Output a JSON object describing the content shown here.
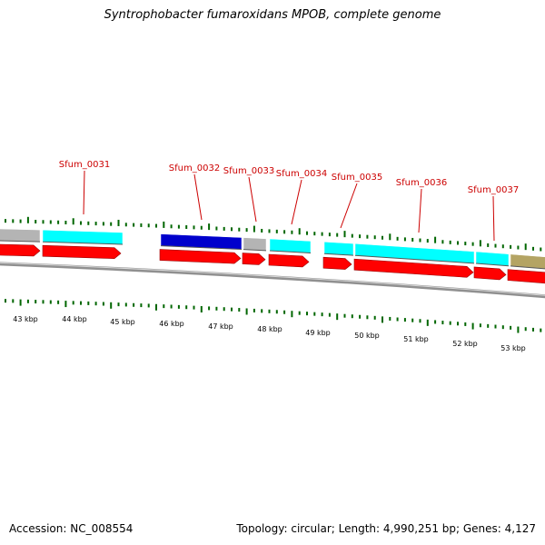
{
  "title": "Syntrophobacter fumaroxidans MPOB, complete genome",
  "accession_text": "Accession: NC_008554",
  "summary_text": "Topology: circular; Length: 4,990,251 bp; Genes: 4,127",
  "colors": {
    "backbone": "#808080",
    "tick": "#006600",
    "cds_forward_strand": "#ff0000",
    "cog_cyan": "#00ffff",
    "cog_blue": "#0000cc",
    "cog_gray": "#b4b4b4",
    "cog_khaki": "#b4a464",
    "label": "#cc0000"
  },
  "genes": [
    {
      "label": "Sfum_0031"
    },
    {
      "label": "Sfum_0032"
    },
    {
      "label": "Sfum_0033"
    },
    {
      "label": "Sfum_0034"
    },
    {
      "label": "Sfum_0035"
    },
    {
      "label": "Sfum_0036"
    },
    {
      "label": "Sfum_0037"
    }
  ],
  "kbp_labels": [
    "43 kbp",
    "44 kbp",
    "45 kbp",
    "46 kbp",
    "47 kbp",
    "48 kbp",
    "49 kbp",
    "50 kbp",
    "51 kbp",
    "52 kbp",
    "53 kbp"
  ]
}
